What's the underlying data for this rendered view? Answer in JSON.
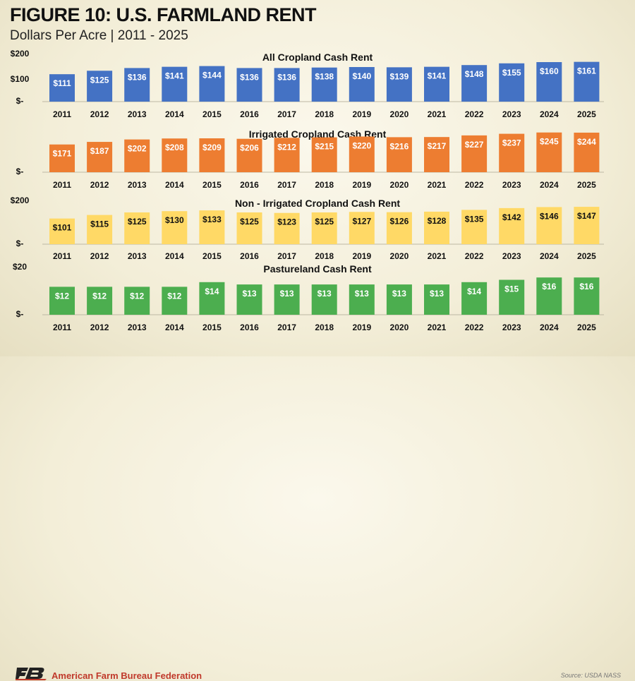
{
  "header": {
    "title": "FIGURE 10: U.S. FARMLAND RENT",
    "subtitle": "Dollars Per Acre | 2011 - 2025"
  },
  "footer": {
    "organization": "American Farm Bureau Federation",
    "source": "Source: USDA NASS"
  },
  "chart_data": [
    {
      "type": "bar",
      "title": "All Cropland Cash Rent",
      "color": "#4472c4",
      "categories": [
        "2011",
        "2012",
        "2013",
        "2014",
        "2015",
        "2016",
        "2017",
        "2018",
        "2019",
        "2020",
        "2021",
        "2022",
        "2023",
        "2024",
        "2025"
      ],
      "values": [
        111,
        125,
        136,
        141,
        144,
        136,
        136,
        138,
        140,
        139,
        141,
        148,
        155,
        160,
        161
      ],
      "labels": [
        "$111",
        "$125",
        "$136",
        "$141",
        "$144",
        "$136",
        "$136",
        "$138",
        "$140",
        "$139",
        "$141",
        "$148",
        "$155",
        "$160",
        "$161"
      ],
      "ylim": [
        0,
        200
      ],
      "yticks": [
        "$-",
        "$100",
        "$200"
      ]
    },
    {
      "type": "bar",
      "title": "Irrigated Cropland Cash Rent",
      "color": "#ed7d31",
      "categories": [
        "2011",
        "2012",
        "2013",
        "2014",
        "2015",
        "2016",
        "2017",
        "2018",
        "2019",
        "2020",
        "2021",
        "2022",
        "2023",
        "2024",
        "2025"
      ],
      "values": [
        171,
        187,
        202,
        208,
        209,
        206,
        212,
        215,
        220,
        216,
        217,
        227,
        237,
        245,
        244
      ],
      "labels": [
        "$171",
        "$187",
        "$202",
        "$208",
        "$209",
        "$206",
        "$212",
        "$215",
        "$220",
        "$216",
        "$217",
        "$227",
        "$237",
        "$245",
        "$244"
      ],
      "ylim": [
        0,
        270
      ],
      "yticks": [
        "$-"
      ]
    },
    {
      "type": "bar",
      "title": "Non - Irrigated Cropland Cash Rent",
      "color": "#ffd966",
      "categories": [
        "2011",
        "2012",
        "2013",
        "2014",
        "2015",
        "2016",
        "2017",
        "2018",
        "2019",
        "2020",
        "2021",
        "2022",
        "2023",
        "2024",
        "2025"
      ],
      "values": [
        101,
        115,
        125,
        130,
        133,
        125,
        123,
        125,
        127,
        126,
        128,
        135,
        142,
        146,
        147
      ],
      "labels": [
        "$101",
        "$115",
        "$125",
        "$130",
        "$133",
        "$125",
        "$123",
        "$125",
        "$127",
        "$126",
        "$128",
        "$135",
        "$142",
        "$146",
        "$147"
      ],
      "ylim": [
        0,
        200
      ],
      "yticks": [
        "$-",
        "$200"
      ]
    },
    {
      "type": "bar",
      "title": "Pastureland Cash Rent",
      "color": "#4cae4f",
      "categories": [
        "2011",
        "2012",
        "2013",
        "2014",
        "2015",
        "2016",
        "2017",
        "2018",
        "2019",
        "2020",
        "2021",
        "2022",
        "2023",
        "2024",
        "2025"
      ],
      "values": [
        12,
        12,
        12,
        12,
        14,
        13,
        13,
        13,
        13,
        13,
        13,
        14,
        15,
        16,
        16
      ],
      "labels": [
        "$12",
        "$12",
        "$12",
        "$12",
        "$14",
        "$13",
        "$13",
        "$13",
        "$13",
        "$13",
        "$13",
        "$14",
        "$15",
        "$16",
        "$16"
      ],
      "ylim": [
        0,
        20
      ],
      "yticks": [
        "$-",
        "$20"
      ]
    }
  ]
}
